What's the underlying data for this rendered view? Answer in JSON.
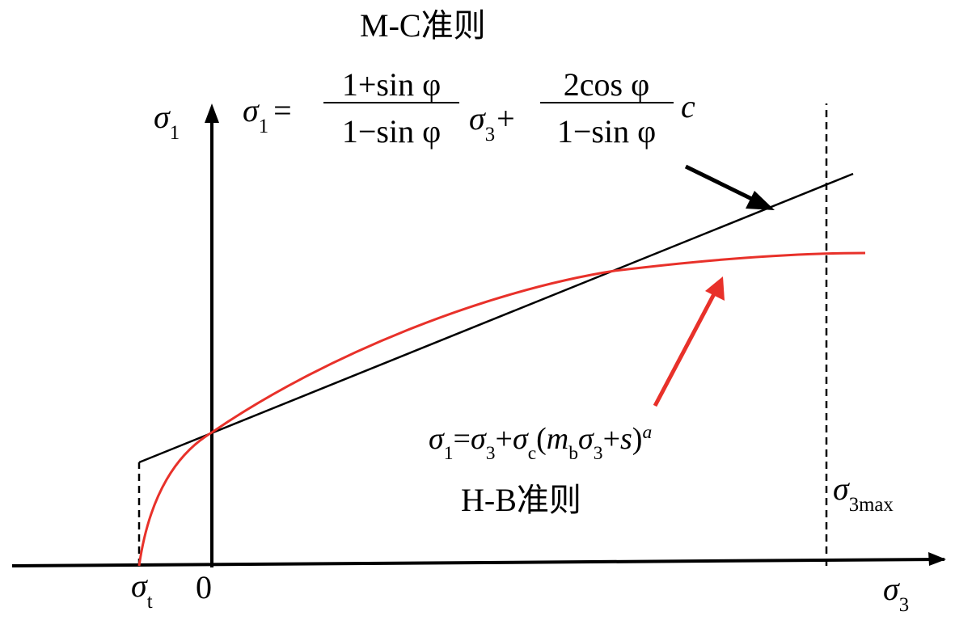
{
  "axes": {
    "y_label": {
      "symbol": "σ",
      "sub": "1"
    },
    "x_label": {
      "symbol": "σ",
      "sub": "3"
    },
    "origin": "0",
    "tension": {
      "symbol": "σ",
      "sub": "t"
    },
    "limit": {
      "symbol": "σ",
      "sub": "3max"
    }
  },
  "mc": {
    "name": "M-C准则",
    "formula": {
      "lhs": "σ",
      "lhs_sub": "1",
      "equals": "=",
      "num1": "1+sin φ",
      "den1": "1−sin φ",
      "var": "σ",
      "var_sub": "3",
      "plus": "+",
      "num2": "2cos φ",
      "den2": "1−sin φ",
      "c": "c"
    }
  },
  "hb": {
    "name": "H-B准则",
    "formula": [
      "σ",
      "1",
      "=",
      "σ",
      "3",
      "+",
      "σ",
      "c",
      "(",
      "m",
      "b",
      "σ",
      "3",
      "+",
      "s",
      ")",
      "a"
    ]
  }
}
